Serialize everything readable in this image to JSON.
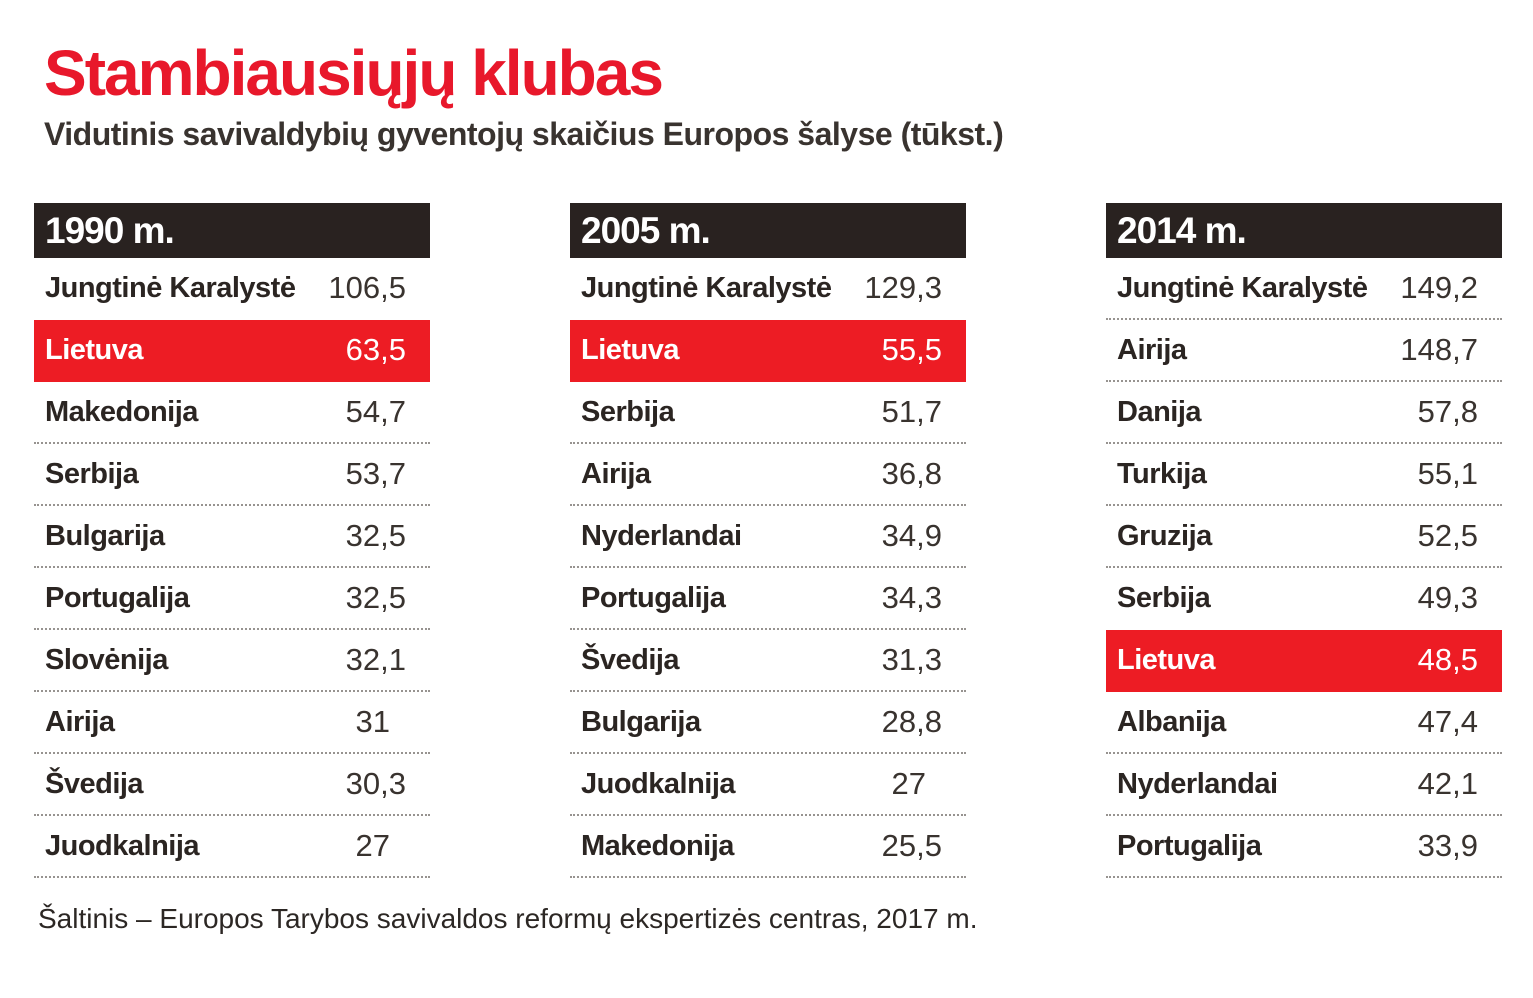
{
  "title": "Stambiausiųjų klubas",
  "subtitle": "Vidutinis savivaldybių gyventojų skaičius Europos šalyse (tūkst.)",
  "source": "Šaltinis – Europos Tarybos savivaldos reformų ekspertizės centras, 2017 m.",
  "colors": {
    "title_red": "#e8182b",
    "highlight_red": "#ed1c24",
    "header_bar": "#292220",
    "country_text": "#2b2522",
    "value_text": "#39332f",
    "separator_dots": "#979390"
  },
  "tables": [
    {
      "header": "1990 m.",
      "rows": [
        {
          "country": "Jungtinė Karalystė",
          "value": "106,5"
        },
        {
          "country": "Lietuva",
          "value": "63,5",
          "highlight": true
        },
        {
          "country": "Makedonija",
          "value": "54,7"
        },
        {
          "country": "Serbija",
          "value": "53,7"
        },
        {
          "country": "Bulgarija",
          "value": "32,5"
        },
        {
          "country": "Portugalija",
          "value": "32,5"
        },
        {
          "country": "Slovėnija",
          "value": "32,1"
        },
        {
          "country": "Airija",
          "value": "31"
        },
        {
          "country": "Švedija",
          "value": "30,3"
        },
        {
          "country": "Juodkalnija",
          "value": "27"
        }
      ]
    },
    {
      "header": "2005 m.",
      "rows": [
        {
          "country": "Jungtinė Karalystė",
          "value": "129,3"
        },
        {
          "country": "Lietuva",
          "value": "55,5",
          "highlight": true
        },
        {
          "country": "Serbija",
          "value": "51,7"
        },
        {
          "country": "Airija",
          "value": "36,8"
        },
        {
          "country": "Nyderlandai",
          "value": "34,9"
        },
        {
          "country": "Portugalija",
          "value": "34,3"
        },
        {
          "country": "Švedija",
          "value": "31,3"
        },
        {
          "country": "Bulgarija",
          "value": "28,8"
        },
        {
          "country": "Juodkalnija",
          "value": "27"
        },
        {
          "country": "Makedonija",
          "value": "25,5"
        }
      ]
    },
    {
      "header": "2014 m.",
      "rows": [
        {
          "country": "Jungtinė Karalystė",
          "value": "149,2"
        },
        {
          "country": "Airija",
          "value": "148,7"
        },
        {
          "country": "Danija",
          "value": "57,8"
        },
        {
          "country": "Turkija",
          "value": "55,1"
        },
        {
          "country": "Gruzija",
          "value": "52,5"
        },
        {
          "country": "Serbija",
          "value": "49,3"
        },
        {
          "country": "Lietuva",
          "value": "48,5",
          "highlight": true
        },
        {
          "country": "Albanija",
          "value": "47,4"
        },
        {
          "country": "Nyderlandai",
          "value": "42,1"
        },
        {
          "country": "Portugalija",
          "value": "33,9"
        }
      ]
    }
  ],
  "chart_data": {
    "type": "table",
    "title": "Stambiausiųjų klubas",
    "subtitle": "Vidutinis savivaldybių gyventojų skaičius Europos šalyse (tūkst.)",
    "unit": "tūkst.",
    "highlighted_country": "Lietuva",
    "tables": [
      {
        "year": "1990 m.",
        "countries": [
          "Jungtinė Karalystė",
          "Lietuva",
          "Makedonija",
          "Serbija",
          "Bulgarija",
          "Portugalija",
          "Slovėnija",
          "Airija",
          "Švedija",
          "Juodkalnija"
        ],
        "values": [
          106.5,
          63.5,
          54.7,
          53.7,
          32.5,
          32.5,
          32.1,
          31,
          30.3,
          27
        ]
      },
      {
        "year": "2005 m.",
        "countries": [
          "Jungtinė Karalystė",
          "Lietuva",
          "Serbija",
          "Airija",
          "Nyderlandai",
          "Portugalija",
          "Švedija",
          "Bulgarija",
          "Juodkalnija",
          "Makedonija"
        ],
        "values": [
          129.3,
          55.5,
          51.7,
          36.8,
          34.9,
          34.3,
          31.3,
          28.8,
          27,
          25.5
        ]
      },
      {
        "year": "2014 m.",
        "countries": [
          "Jungtinė Karalystė",
          "Airija",
          "Danija",
          "Turkija",
          "Gruzija",
          "Serbija",
          "Lietuva",
          "Albanija",
          "Nyderlandai",
          "Portugalija"
        ],
        "values": [
          149.2,
          148.7,
          57.8,
          55.1,
          52.5,
          49.3,
          48.5,
          47.4,
          42.1,
          33.9
        ]
      }
    ],
    "source": "Šaltinis – Europos Tarybos savivaldos reformų ekspertizės centras, 2017 m."
  }
}
